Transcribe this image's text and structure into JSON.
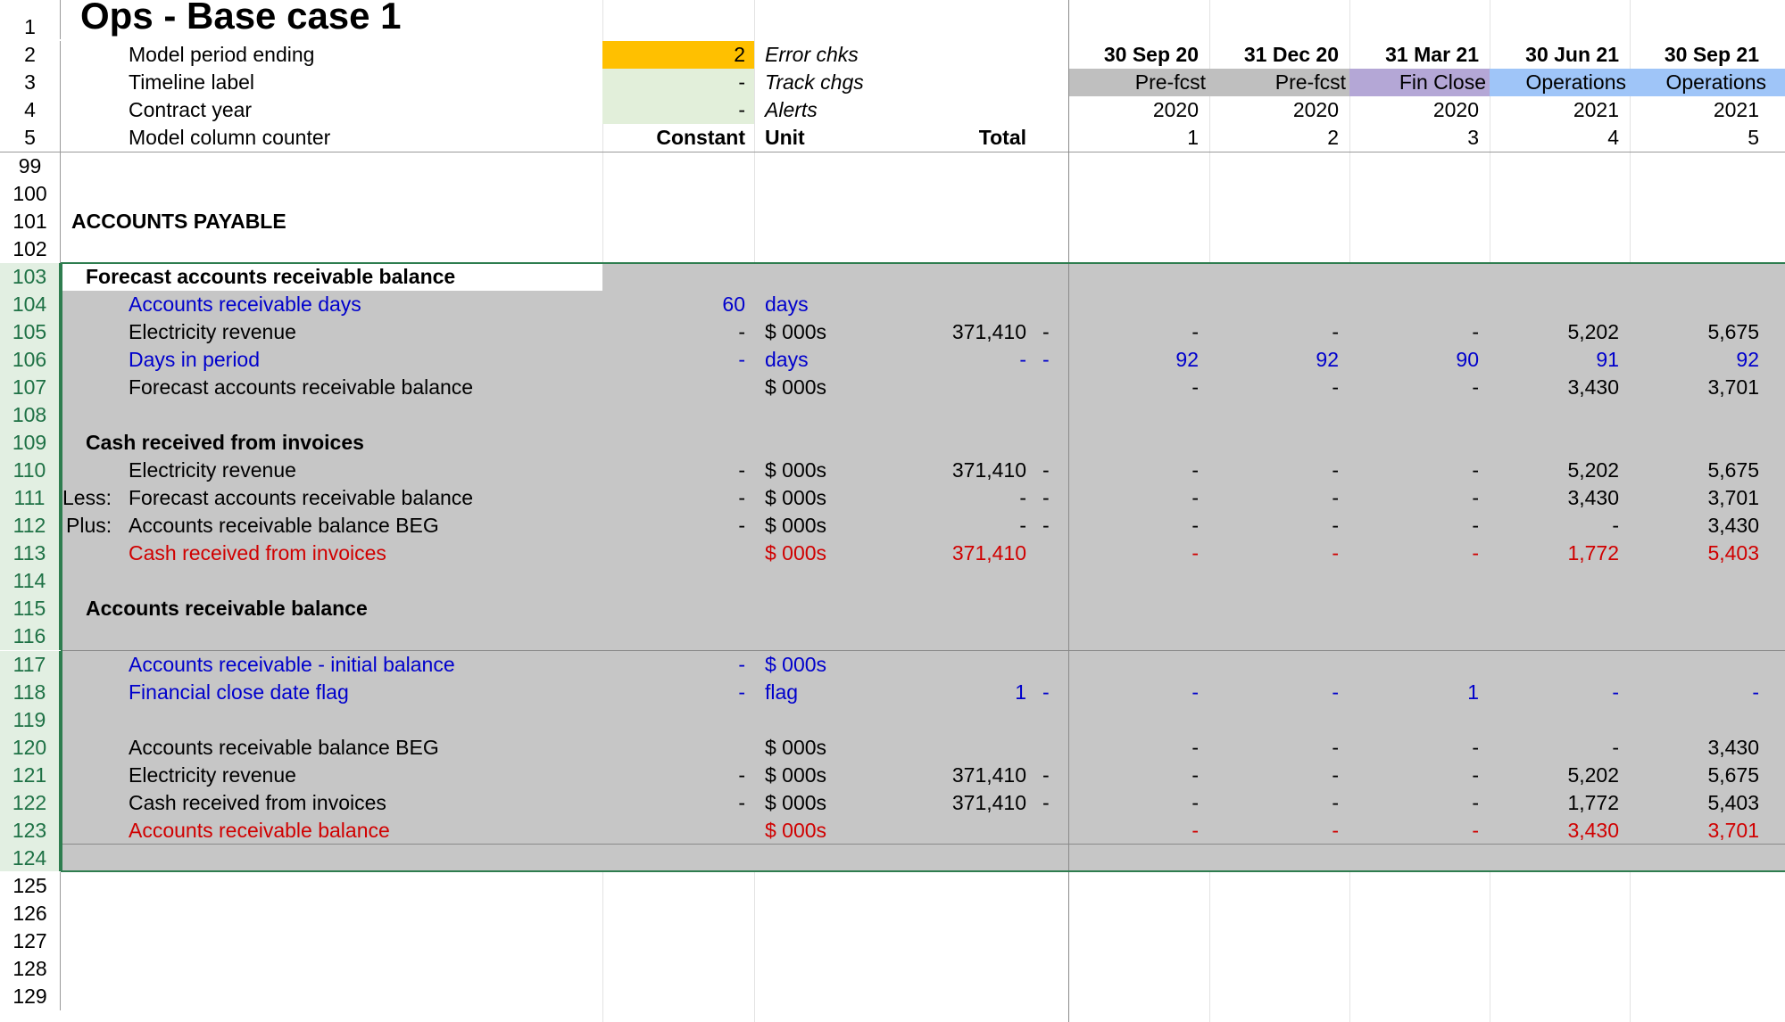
{
  "title": "Ops - Base case 1",
  "colors": {
    "input_yellow": "#ffc000",
    "input_green": "#e2efda",
    "prefcst_grey": "#bfbfbf",
    "finclose_purple": "#b4a7d6",
    "operations_blue": "#9fc5f8",
    "selection_grey": "#c6c6c6",
    "blue_text": "#0000cc",
    "red_text": "#d00000"
  },
  "header": {
    "model_period_ending": {
      "num": "2",
      "label": "Model period ending",
      "value": "2",
      "side": "Error chks"
    },
    "timeline_label": {
      "num": "3",
      "label": "Timeline label",
      "value": "-",
      "side": "Track chgs"
    },
    "contract_year": {
      "num": "4",
      "label": "Contract year",
      "value": "-",
      "side": "Alerts"
    },
    "counter": {
      "num": "5",
      "label": "Model column counter",
      "constant": "Constant",
      "unit": "Unit",
      "total": "Total"
    }
  },
  "periods": [
    {
      "date": "30 Sep 20",
      "label": "Pre-fcst",
      "year": "2020",
      "counter": "1"
    },
    {
      "date": "31 Dec 20",
      "label": "Pre-fcst",
      "year": "2020",
      "counter": "2"
    },
    {
      "date": "31 Mar 21",
      "label": "Fin Close",
      "year": "2020",
      "counter": "3"
    },
    {
      "date": "30 Jun 21",
      "label": "Operations",
      "year": "2021",
      "counter": "4"
    },
    {
      "date": "30 Sep 21",
      "label": "Operations",
      "year": "2021",
      "counter": "5"
    }
  ],
  "row_numbers": {
    "r1": "1",
    "r99": "99",
    "r100": "100",
    "r101": "101",
    "r102": "102",
    "r125": "125",
    "r126": "126",
    "r127": "127",
    "r128": "128",
    "r129": "129"
  },
  "section_title": "ACCOUNTS PAYABLE",
  "rows": {
    "r103": {
      "num": "103",
      "title": "Forecast accounts receivable balance"
    },
    "r104": {
      "num": "104",
      "label": "Accounts receivable days",
      "constant": "60",
      "unit": "days"
    },
    "r105": {
      "num": "105",
      "label": "Electricity revenue",
      "constant": "-",
      "unit": "$ 000s",
      "total": "371,410",
      "flag": "-",
      "v": [
        "-",
        "-",
        "-",
        "5,202",
        "5,675"
      ]
    },
    "r106": {
      "num": "106",
      "label": "Days in period",
      "constant": "-",
      "unit": "days",
      "total": "-",
      "flag": "-",
      "v": [
        "92",
        "92",
        "90",
        "91",
        "92"
      ]
    },
    "r107": {
      "num": "107",
      "label": "Forecast accounts receivable balance",
      "unit": "$ 000s",
      "v": [
        "-",
        "-",
        "-",
        "3,430",
        "3,701"
      ]
    },
    "r108": {
      "num": "108"
    },
    "r109": {
      "num": "109",
      "title": "Cash received from invoices"
    },
    "r110": {
      "num": "110",
      "label": "Electricity revenue",
      "constant": "-",
      "unit": "$ 000s",
      "total": "371,410",
      "flag": "-",
      "v": [
        "-",
        "-",
        "-",
        "5,202",
        "5,675"
      ]
    },
    "r111": {
      "num": "111",
      "prefix": "Less:",
      "label": "Forecast accounts receivable balance",
      "constant": "-",
      "unit": "$ 000s",
      "total": "-",
      "flag": "-",
      "v": [
        "-",
        "-",
        "-",
        "3,430",
        "3,701"
      ]
    },
    "r112": {
      "num": "112",
      "prefix": "Plus:",
      "label": "Accounts receivable balance BEG",
      "constant": "-",
      "unit": "$ 000s",
      "total": "-",
      "flag": "-",
      "v": [
        "-",
        "-",
        "-",
        "-",
        "3,430"
      ]
    },
    "r113": {
      "num": "113",
      "label": "Cash received from invoices",
      "unit": "$ 000s",
      "total": "371,410",
      "v": [
        "-",
        "-",
        "-",
        "1,772",
        "5,403"
      ]
    },
    "r114": {
      "num": "114"
    },
    "r115": {
      "num": "115",
      "title": "Accounts receivable balance"
    },
    "r116": {
      "num": "116"
    },
    "r117": {
      "num": "117",
      "label": "Accounts receivable - initial balance",
      "constant": "-",
      "unit": "$ 000s"
    },
    "r118": {
      "num": "118",
      "label": "Financial close date flag",
      "constant": "-",
      "unit": "flag",
      "total": "1",
      "flag": "-",
      "v": [
        "-",
        "-",
        "1",
        "-",
        "-"
      ]
    },
    "r119": {
      "num": "119"
    },
    "r120": {
      "num": "120",
      "label": "Accounts receivable balance BEG",
      "unit": "$ 000s",
      "v": [
        "-",
        "-",
        "-",
        "-",
        "3,430"
      ]
    },
    "r121": {
      "num": "121",
      "label": "Electricity revenue",
      "constant": "-",
      "unit": "$ 000s",
      "total": "371,410",
      "flag": "-",
      "v": [
        "-",
        "-",
        "-",
        "5,202",
        "5,675"
      ]
    },
    "r122": {
      "num": "122",
      "label": "Cash received from invoices",
      "constant": "-",
      "unit": "$ 000s",
      "total": "371,410",
      "flag": "-",
      "v": [
        "-",
        "-",
        "-",
        "1,772",
        "5,403"
      ]
    },
    "r123": {
      "num": "123",
      "label": "Accounts receivable balance",
      "unit": "$ 000s",
      "v": [
        "-",
        "-",
        "-",
        "3,430",
        "3,701"
      ]
    },
    "r124": {
      "num": "124"
    }
  }
}
